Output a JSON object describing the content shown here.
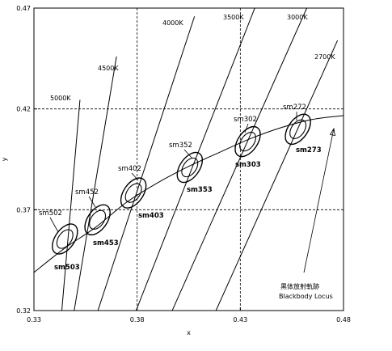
{
  "chart_data": {
    "type": "line",
    "xlabel": "x",
    "ylabel": "y",
    "xlim": [
      0.33,
      0.48
    ],
    "ylim": [
      0.32,
      0.47
    ],
    "x_ticks": [
      "0.33",
      "0.38",
      "0.43",
      "0.48"
    ],
    "y_ticks": [
      "0.32",
      "0.37",
      "0.42",
      "0.47"
    ],
    "dashed_gridlines": {
      "x": [
        0.38,
        0.43
      ],
      "y": [
        0.37,
        0.42
      ]
    },
    "blackbody_locus": {
      "label_jp": "黒体放射軌跡",
      "label_en": "Blackbody Locus",
      "points": [
        [
          0.33,
          0.3389
        ],
        [
          0.345,
          0.351
        ],
        [
          0.36,
          0.3614
        ],
        [
          0.375,
          0.3738
        ],
        [
          0.39,
          0.3834
        ],
        [
          0.405,
          0.3915
        ],
        [
          0.42,
          0.3985
        ],
        [
          0.435,
          0.4053
        ],
        [
          0.45,
          0.4108
        ],
        [
          0.465,
          0.4148
        ],
        [
          0.48,
          0.4167
        ]
      ]
    },
    "isotherms": [
      {
        "label": "5000K",
        "x1": 0.3435,
        "y1": 0.32,
        "x2": 0.3523,
        "y2": 0.4245
      },
      {
        "label": "4500K",
        "x1": 0.3495,
        "y1": 0.32,
        "x2": 0.37,
        "y2": 0.446
      },
      {
        "label": "4000K",
        "x1": 0.361,
        "y1": 0.32,
        "x2": 0.4078,
        "y2": 0.4659
      },
      {
        "label": "3500K",
        "x1": 0.3795,
        "y1": 0.32,
        "x2": 0.437,
        "y2": 0.47
      },
      {
        "label": "3000K",
        "x1": 0.397,
        "y1": 0.32,
        "x2": 0.4622,
        "y2": 0.47
      },
      {
        "label": "2700K",
        "x1": 0.4182,
        "y1": 0.32,
        "x2": 0.4771,
        "y2": 0.454
      }
    ],
    "sm_regions": [
      {
        "outer": "sm502",
        "inner": "sm503",
        "x": 0.345,
        "y": 0.3555
      },
      {
        "outer": "sm452",
        "inner": "sm453",
        "x": 0.3608,
        "y": 0.365
      },
      {
        "outer": "sm402",
        "inner": "sm403",
        "x": 0.3782,
        "y": 0.3783
      },
      {
        "outer": "sm352",
        "inner": "sm353",
        "x": 0.4055,
        "y": 0.391
      },
      {
        "outer": "sm302",
        "inner": "sm303",
        "x": 0.4336,
        "y": 0.4038
      },
      {
        "outer": "sm272",
        "inner": "sm273",
        "x": 0.4579,
        "y": 0.4099
      }
    ]
  }
}
